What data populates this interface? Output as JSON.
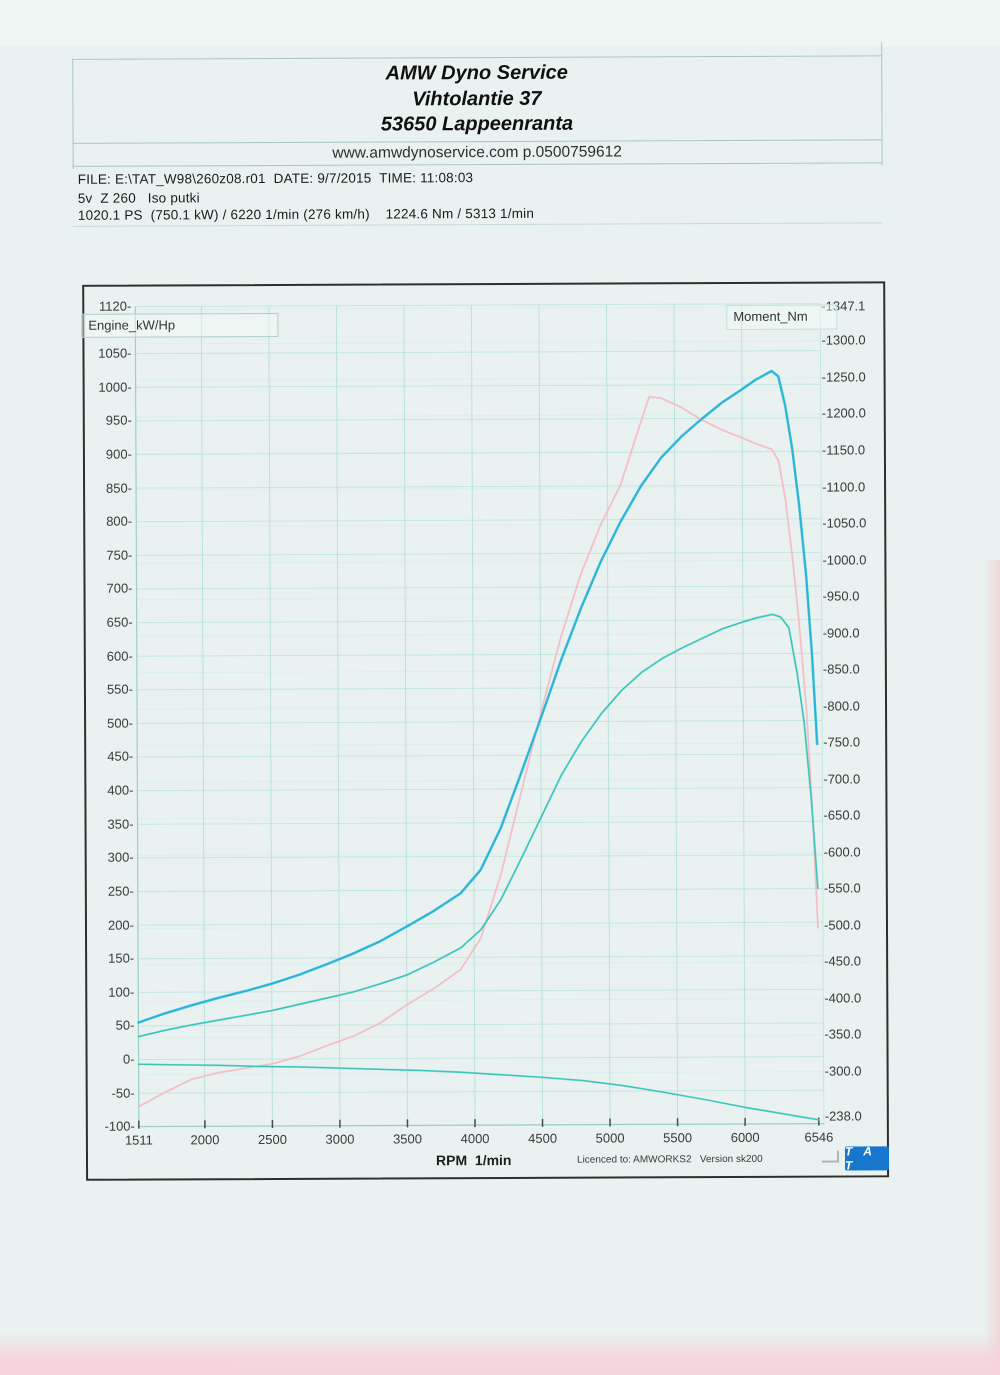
{
  "header": {
    "title_line1": "AMW Dyno Service",
    "title_line2": "Vihtolantie 37",
    "title_line3": "53650 Lappeenranta",
    "website_line": "www.amwdynoservice.com p.0500759612",
    "file_line": "FILE: E:\\TAT_W98\\260z08.r01  DATE: 9/7/2015  TIME: 11:08:03",
    "run_line": "5v  Z 260   Iso putki",
    "result_line": "1020.1 PS  (750.1 kW) / 6220 1/min (276 km/h)    1224.6 Nm / 5313 1/min"
  },
  "footer": {
    "license_text": "Licenced to: AMWORKS2   Version sk200",
    "logo_text": "T A T"
  },
  "colors": {
    "power_ps_curve": "#2ab5d8",
    "power_kw_curve": "#38c4bb",
    "torque_curve": "#f5bcc5",
    "grid_major": "#c3e7e3",
    "grid_minor": "#daf0ec",
    "frame": "#2e2e2e",
    "logo_bg": "#1677cd"
  },
  "chart_data": {
    "type": "line",
    "title": "",
    "xlabel": "RPM  1/min",
    "grid": true,
    "x_axis": {
      "range": [
        1511,
        6546
      ],
      "ticks": [
        1511,
        2000,
        2500,
        3000,
        3500,
        4000,
        4500,
        5000,
        5500,
        6000,
        6546
      ]
    },
    "left_axis": {
      "label": "Engine_kW/Hp",
      "range": [
        -100,
        1120
      ],
      "ticks": [
        1120,
        1050,
        1000,
        950,
        900,
        850,
        800,
        750,
        700,
        650,
        600,
        550,
        500,
        450,
        400,
        350,
        300,
        250,
        200,
        150,
        100,
        50,
        0,
        -50,
        -100
      ]
    },
    "right_axis": {
      "label": "Moment_Nm",
      "range": [
        238.0,
        1347.1
      ],
      "ticks": [
        1347.1,
        1300,
        1250,
        1200,
        1150,
        1100,
        1050,
        1000,
        950,
        900,
        850,
        800,
        750,
        700,
        650,
        600,
        550,
        500,
        450,
        400,
        350,
        300,
        238
      ]
    },
    "series": [
      {
        "name": "torque_Nm",
        "axis": "right",
        "color": "#f5bcc5",
        "width": 1.7,
        "points": [
          [
            1511,
            256
          ],
          [
            1700,
            275
          ],
          [
            1900,
            293
          ],
          [
            2100,
            302
          ],
          [
            2300,
            308
          ],
          [
            2500,
            314
          ],
          [
            2700,
            324
          ],
          [
            2900,
            338
          ],
          [
            3100,
            351
          ],
          [
            3300,
            369
          ],
          [
            3500,
            394
          ],
          [
            3700,
            416
          ],
          [
            3900,
            442
          ],
          [
            4050,
            485
          ],
          [
            4200,
            572
          ],
          [
            4350,
            682
          ],
          [
            4500,
            792
          ],
          [
            4650,
            895
          ],
          [
            4800,
            982
          ],
          [
            4950,
            1050
          ],
          [
            5100,
            1105
          ],
          [
            5200,
            1162
          ],
          [
            5313,
            1224.6
          ],
          [
            5400,
            1223
          ],
          [
            5550,
            1210
          ],
          [
            5700,
            1193
          ],
          [
            5850,
            1179
          ],
          [
            6000,
            1168
          ],
          [
            6100,
            1160
          ],
          [
            6220,
            1152
          ],
          [
            6270,
            1136
          ],
          [
            6320,
            1082
          ],
          [
            6370,
            1002
          ],
          [
            6420,
            906
          ],
          [
            6470,
            790
          ],
          [
            6510,
            652
          ],
          [
            6546,
            497
          ]
        ]
      },
      {
        "name": "wheel_power_kW",
        "axis": "left",
        "color": "#38c4bb",
        "width": 1.7,
        "points": [
          [
            1511,
            34
          ],
          [
            1700,
            43
          ],
          [
            1900,
            51
          ],
          [
            2100,
            58
          ],
          [
            2300,
            65
          ],
          [
            2500,
            72
          ],
          [
            2700,
            81
          ],
          [
            2900,
            90
          ],
          [
            3100,
            99
          ],
          [
            3300,
            111
          ],
          [
            3500,
            124
          ],
          [
            3700,
            143
          ],
          [
            3900,
            164
          ],
          [
            4050,
            191
          ],
          [
            4200,
            236
          ],
          [
            4350,
            296
          ],
          [
            4500,
            358
          ],
          [
            4650,
            420
          ],
          [
            4800,
            470
          ],
          [
            4950,
            512
          ],
          [
            5100,
            546
          ],
          [
            5250,
            573
          ],
          [
            5400,
            593
          ],
          [
            5550,
            609
          ],
          [
            5700,
            623
          ],
          [
            5850,
            637
          ],
          [
            6000,
            647
          ],
          [
            6100,
            653
          ],
          [
            6220,
            658
          ],
          [
            6280,
            654
          ],
          [
            6340,
            638
          ],
          [
            6400,
            570
          ],
          [
            6450,
            498
          ],
          [
            6500,
            385
          ],
          [
            6546,
            250
          ]
        ]
      },
      {
        "name": "drag_losses_kW",
        "axis": "left",
        "color": "#38c4bb",
        "width": 1.6,
        "points": [
          [
            1511,
            -7
          ],
          [
            1800,
            -8
          ],
          [
            2100,
            -9
          ],
          [
            2400,
            -11
          ],
          [
            2700,
            -12
          ],
          [
            3000,
            -14
          ],
          [
            3300,
            -16
          ],
          [
            3600,
            -18
          ],
          [
            3900,
            -21
          ],
          [
            4200,
            -25
          ],
          [
            4500,
            -29
          ],
          [
            4800,
            -34
          ],
          [
            5100,
            -42
          ],
          [
            5400,
            -52
          ],
          [
            5700,
            -63
          ],
          [
            6000,
            -75
          ],
          [
            6200,
            -82
          ],
          [
            6400,
            -89
          ],
          [
            6546,
            -94
          ]
        ]
      },
      {
        "name": "engine_power_PS",
        "axis": "left",
        "color": "#2ab5d8",
        "width": 2.4,
        "points": [
          [
            1511,
            55
          ],
          [
            1700,
            68
          ],
          [
            1900,
            80
          ],
          [
            2100,
            91
          ],
          [
            2300,
            101
          ],
          [
            2500,
            112
          ],
          [
            2700,
            125
          ],
          [
            2900,
            140
          ],
          [
            3100,
            156
          ],
          [
            3300,
            174
          ],
          [
            3500,
            196
          ],
          [
            3700,
            219
          ],
          [
            3900,
            245
          ],
          [
            4050,
            280
          ],
          [
            4200,
            342
          ],
          [
            4350,
            422
          ],
          [
            4500,
            505
          ],
          [
            4650,
            590
          ],
          [
            4800,
            668
          ],
          [
            4950,
            738
          ],
          [
            5100,
            798
          ],
          [
            5250,
            850
          ],
          [
            5400,
            892
          ],
          [
            5550,
            923
          ],
          [
            5700,
            949
          ],
          [
            5850,
            973
          ],
          [
            6000,
            993
          ],
          [
            6100,
            1007
          ],
          [
            6220,
            1020
          ],
          [
            6270,
            1012
          ],
          [
            6320,
            968
          ],
          [
            6370,
            905
          ],
          [
            6420,
            820
          ],
          [
            6470,
            715
          ],
          [
            6510,
            600
          ],
          [
            6546,
            465
          ]
        ]
      }
    ]
  }
}
